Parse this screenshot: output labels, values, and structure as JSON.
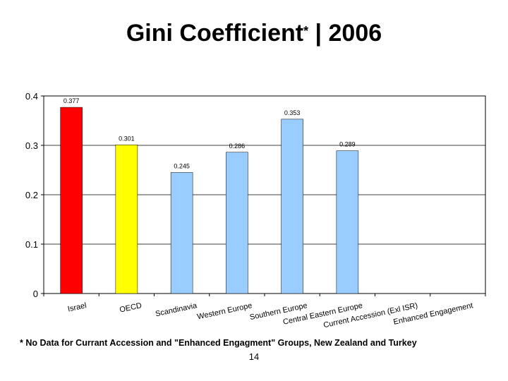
{
  "page": {
    "title_main": "Gini Coefficient",
    "title_star": "*",
    "title_suffix": " | 2006",
    "footnote": "* No Data for Currant Accession and \"Enhanced Engagment\" Groups, New Zealand and Turkey",
    "page_number": "14"
  },
  "chart_data": {
    "type": "bar",
    "title": "Gini Coefficient* | 2006",
    "categories": [
      "Israel",
      "OECD",
      "Scandinavia",
      "Western Europe",
      "Southern Europe",
      "Central Eastern Europe",
      "Current Accession (Exl ISR)",
      "Enhanced Engagement"
    ],
    "values": [
      0.377,
      0.301,
      0.245,
      0.286,
      0.353,
      0.289,
      null,
      null
    ],
    "value_labels": [
      "0.377",
      "0.301",
      "0.245",
      "0.286",
      "0.353",
      "0.289",
      "",
      ""
    ],
    "colors": [
      "#ff0000",
      "#ffff00",
      "#99ccff",
      "#99ccff",
      "#99ccff",
      "#99ccff",
      "#99ccff",
      "#99ccff"
    ],
    "ylim": [
      0,
      0.4
    ],
    "yticks": [
      0,
      0.1,
      0.2,
      0.3,
      0.4
    ],
    "ytick_labels": [
      "0",
      "0.1",
      "0.2",
      "0.3",
      "0.4"
    ],
    "grid": true,
    "legend": "none"
  }
}
